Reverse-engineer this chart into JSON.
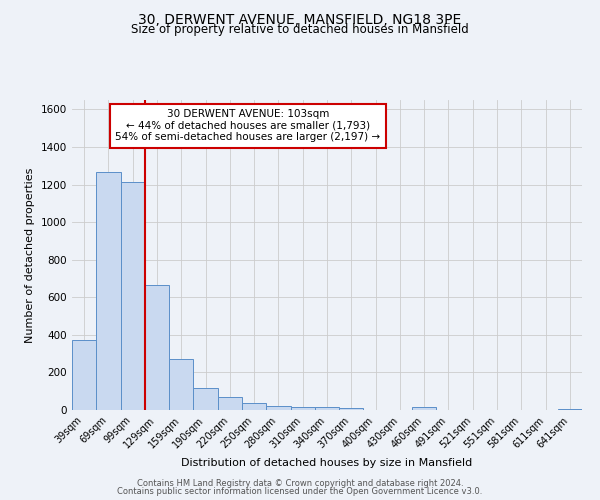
{
  "title": "30, DERWENT AVENUE, MANSFIELD, NG18 3PE",
  "subtitle": "Size of property relative to detached houses in Mansfield",
  "xlabel": "Distribution of detached houses by size in Mansfield",
  "ylabel": "Number of detached properties",
  "categories": [
    "39sqm",
    "69sqm",
    "99sqm",
    "129sqm",
    "159sqm",
    "190sqm",
    "220sqm",
    "250sqm",
    "280sqm",
    "310sqm",
    "340sqm",
    "370sqm",
    "400sqm",
    "430sqm",
    "460sqm",
    "491sqm",
    "521sqm",
    "551sqm",
    "581sqm",
    "611sqm",
    "641sqm"
  ],
  "values": [
    370,
    1265,
    1215,
    665,
    270,
    115,
    70,
    35,
    20,
    17,
    17,
    10,
    0,
    0,
    15,
    0,
    0,
    0,
    0,
    0,
    5
  ],
  "bar_color": "#c9d9f0",
  "bar_edge_color": "#5b8fc9",
  "red_line_x": 2.5,
  "annotation_text": "30 DERWENT AVENUE: 103sqm\n← 44% of detached houses are smaller (1,793)\n54% of semi-detached houses are larger (2,197) →",
  "annotation_box_color": "#ffffff",
  "annotation_box_edge": "#cc0000",
  "background_color": "#eef2f8",
  "grid_color": "#cccccc",
  "ylim": [
    0,
    1650
  ],
  "yticks": [
    0,
    200,
    400,
    600,
    800,
    1000,
    1200,
    1400,
    1600
  ],
  "footer_line1": "Contains HM Land Registry data © Crown copyright and database right 2024.",
  "footer_line2": "Contains public sector information licensed under the Open Government Licence v3.0."
}
